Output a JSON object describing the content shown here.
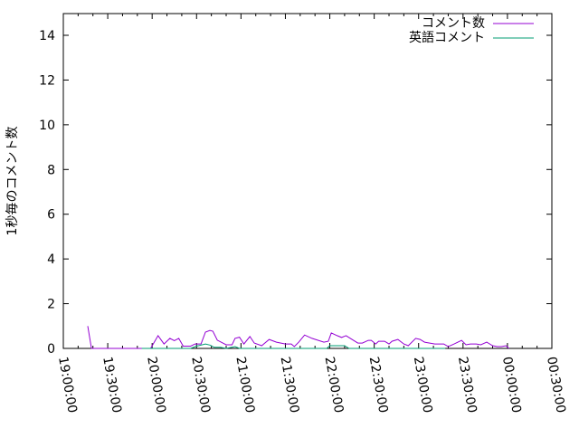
{
  "chart_data": {
    "type": "line",
    "ylabel": "1秒毎のコメント数",
    "xlabel": "",
    "ylim": [
      0,
      14
    ],
    "yticks": [
      "0",
      "2",
      "4",
      "6",
      "8",
      "10",
      "12",
      "14"
    ],
    "xlim": [
      "19:00:00",
      "00:30:00"
    ],
    "xticks": [
      "19:00:00",
      "19:30:00",
      "20:00:00",
      "20:30:00",
      "21:00:00",
      "21:30:00",
      "22:00:00",
      "22:30:00",
      "23:00:00",
      "23:30:00",
      "00:00:00",
      "00:30:00"
    ],
    "grid": false,
    "legend": "top-right",
    "series": [
      {
        "name": "コメント数",
        "color": "#9400d3",
        "points": [
          [
            "19:16:30",
            1.0
          ],
          [
            "19:19:00",
            0
          ],
          [
            "19:53:00",
            0
          ],
          [
            "19:59:00",
            0
          ],
          [
            "20:04:00",
            0.57
          ],
          [
            "20:08:00",
            0.2
          ],
          [
            "20:12:00",
            0.45
          ],
          [
            "20:15:00",
            0.35
          ],
          [
            "20:18:00",
            0.45
          ],
          [
            "20:21:00",
            0.1
          ],
          [
            "20:26:00",
            0.1
          ],
          [
            "20:29:00",
            0.2
          ],
          [
            "20:33:00",
            0.2
          ],
          [
            "20:36:00",
            0.73
          ],
          [
            "20:39:00",
            0.8
          ],
          [
            "20:41:00",
            0.77
          ],
          [
            "20:44:00",
            0.37
          ],
          [
            "20:50:00",
            0.16
          ],
          [
            "20:54:00",
            0.16
          ],
          [
            "20:56:00",
            0.45
          ],
          [
            "20:59:00",
            0.5
          ],
          [
            "21:02:00",
            0.2
          ],
          [
            "21:06:00",
            0.53
          ],
          [
            "21:09:00",
            0.24
          ],
          [
            "21:14:00",
            0.12
          ],
          [
            "21:19:00",
            0.4
          ],
          [
            "21:24:00",
            0.28
          ],
          [
            "21:30:00",
            0.2
          ],
          [
            "21:34:00",
            0.2
          ],
          [
            "21:36:00",
            0.08
          ],
          [
            "21:39:00",
            0.28
          ],
          [
            "21:43:00",
            0.6
          ],
          [
            "21:48:00",
            0.45
          ],
          [
            "21:56:00",
            0.28
          ],
          [
            "21:59:00",
            0.32
          ],
          [
            "22:01:00",
            0.69
          ],
          [
            "22:05:00",
            0.57
          ],
          [
            "22:08:00",
            0.49
          ],
          [
            "22:11:00",
            0.57
          ],
          [
            "22:16:00",
            0.36
          ],
          [
            "22:19:00",
            0.24
          ],
          [
            "22:22:00",
            0.24
          ],
          [
            "22:26:00",
            0.36
          ],
          [
            "22:28:00",
            0.36
          ],
          [
            "22:31:00",
            0.2
          ],
          [
            "22:33:00",
            0.32
          ],
          [
            "22:37:00",
            0.32
          ],
          [
            "22:40:00",
            0.2
          ],
          [
            "22:42:00",
            0.32
          ],
          [
            "22:46:00",
            0.4
          ],
          [
            "22:50:00",
            0.2
          ],
          [
            "22:53:00",
            0.12
          ],
          [
            "22:58:00",
            0.45
          ],
          [
            "23:01:00",
            0.4
          ],
          [
            "23:04:00",
            0.28
          ],
          [
            "23:11:00",
            0.2
          ],
          [
            "23:17:00",
            0.2
          ],
          [
            "23:20:00",
            0.08
          ],
          [
            "23:24:00",
            0.2
          ],
          [
            "23:29:00",
            0.36
          ],
          [
            "23:32:00",
            0.16
          ],
          [
            "23:35:00",
            0.2
          ],
          [
            "23:39:00",
            0.2
          ],
          [
            "23:42:00",
            0.16
          ],
          [
            "23:46:00",
            0.28
          ],
          [
            "23:50:00",
            0.12
          ],
          [
            "23:53:00",
            0.08
          ],
          [
            "23:56:00",
            0.08
          ],
          [
            "23:59:00",
            0.12
          ],
          [
            "00:01:00",
            0
          ]
        ]
      },
      {
        "name": "英語コメント",
        "color": "#009e73",
        "points": [
          [
            "19:53:00",
            0
          ],
          [
            "20:26:00",
            0
          ],
          [
            "20:30:00",
            0.1
          ],
          [
            "20:36:00",
            0.2
          ],
          [
            "20:39:00",
            0.15
          ],
          [
            "20:42:00",
            0.05
          ],
          [
            "20:46:00",
            0.05
          ],
          [
            "20:50:00",
            0
          ],
          [
            "20:56:00",
            0.08
          ],
          [
            "20:59:00",
            0
          ],
          [
            "21:58:00",
            0
          ],
          [
            "22:00:00",
            0.12
          ],
          [
            "22:10:00",
            0.12
          ],
          [
            "22:13:00",
            0
          ],
          [
            "23:18:00",
            0
          ]
        ]
      }
    ]
  }
}
